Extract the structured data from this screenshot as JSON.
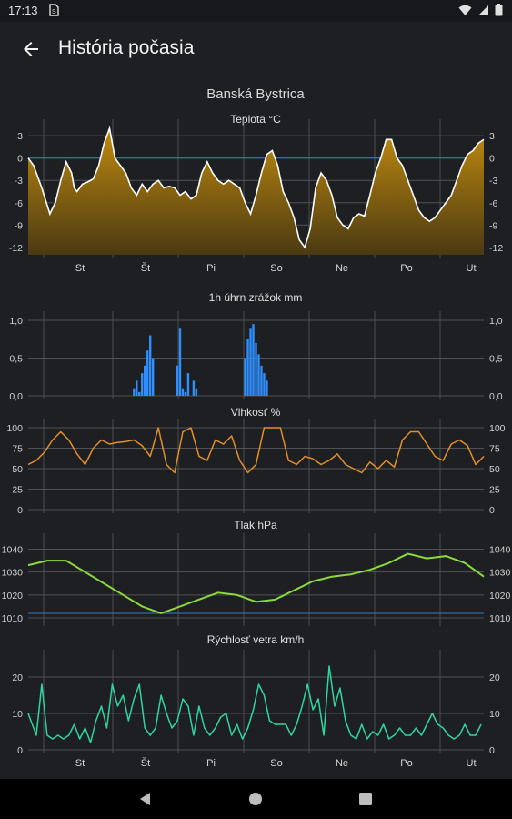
{
  "status_bar": {
    "time": "17:13",
    "sim_icon": "sim-card-icon",
    "icons": [
      "wifi-icon",
      "signal-icon",
      "battery-icon"
    ]
  },
  "app_bar": {
    "title": "História počasia",
    "back_icon": "arrow-back-icon"
  },
  "location": "Banská Bystrica",
  "days": [
    "St",
    "Št",
    "Pi",
    "So",
    "Ne",
    "Po",
    "Ut"
  ],
  "colors": {
    "temperature": "#b8860b",
    "precipitation": "#2f8fff",
    "humidity": "#e38f2b",
    "pressure": "#8cd93a",
    "wind": "#2fd6a2"
  },
  "chart_data": [
    {
      "type": "area",
      "title": "Teplota °C",
      "ylim": [
        -13,
        4
      ],
      "yticks": [
        "3",
        "0",
        "-3",
        "-6",
        "-9",
        "-12"
      ],
      "ytick_values": [
        3,
        0,
        -3,
        -6,
        -9,
        -12
      ],
      "x": [
        0,
        2,
        5,
        8,
        10,
        12,
        14,
        16,
        17,
        18,
        20,
        22,
        24,
        26,
        28,
        30,
        32,
        34,
        36,
        38,
        40,
        42,
        44,
        46,
        48,
        50,
        52,
        54,
        56,
        58,
        60,
        62,
        64,
        66,
        68,
        70,
        72,
        74,
        76,
        78,
        80,
        82,
        84,
        86,
        88,
        90,
        92,
        94,
        96,
        98,
        100,
        102,
        104,
        106,
        108,
        110,
        112,
        114,
        116,
        118,
        120,
        122,
        124,
        126,
        128,
        130,
        132,
        134,
        136,
        138,
        140,
        142,
        144,
        146,
        148,
        150,
        152,
        154,
        156,
        158,
        160,
        162,
        164,
        166,
        168
      ],
      "values": [
        0,
        -1,
        -4,
        -7.5,
        -6,
        -3,
        -0.5,
        -2,
        -4,
        -4.5,
        -3.5,
        -3.2,
        -2.8,
        -1,
        2,
        4,
        0,
        -1,
        -2,
        -4,
        -5,
        -3.5,
        -4.5,
        -3.5,
        -3,
        -4,
        -3.8,
        -4,
        -5,
        -4.5,
        -5.5,
        -5,
        -2,
        -0.5,
        -2,
        -3,
        -3.5,
        -3,
        -3.5,
        -4,
        -6,
        -7.5,
        -5,
        -2,
        0.5,
        1,
        -1,
        -4.5,
        -6,
        -8,
        -11,
        -12,
        -9.5,
        -4,
        -2,
        -3,
        -5,
        -8,
        -9,
        -9.5,
        -8,
        -7.5,
        -7.8,
        -5,
        -2,
        0,
        2.5,
        2.5,
        0,
        -1,
        -3,
        -5,
        -7,
        -8,
        -8.5,
        -8,
        -7,
        -6,
        -5,
        -3,
        -1,
        0.5,
        1,
        2,
        2.5
      ],
      "zero_line": 0
    },
    {
      "type": "bar",
      "title": "1h úhrn zrážok mm",
      "ylim": [
        0,
        1.0
      ],
      "yticks": [
        "1,0",
        "0,5",
        "0,0"
      ],
      "ytick_values": [
        1.0,
        0.5,
        0.0
      ],
      "x": [
        39,
        40,
        41,
        42,
        43,
        44,
        45,
        46,
        55,
        56,
        57,
        58,
        59,
        61,
        62,
        80,
        81,
        82,
        83,
        84,
        85,
        86,
        87,
        88
      ],
      "values": [
        0.1,
        0.2,
        0.05,
        0.3,
        0.4,
        0.6,
        0.8,
        0.5,
        0.4,
        0.9,
        0.1,
        0.05,
        0.3,
        0.2,
        0.1,
        0.5,
        0.75,
        0.9,
        0.95,
        0.7,
        0.55,
        0.4,
        0.3,
        0.2
      ]
    },
    {
      "type": "line",
      "title": "Vlhkosť %",
      "ylim": [
        0,
        100
      ],
      "yticks": [
        "100",
        "75",
        "50",
        "25",
        "0"
      ],
      "ytick_values": [
        100,
        75,
        50,
        25,
        0
      ],
      "x": [
        0,
        3,
        6,
        9,
        12,
        15,
        18,
        21,
        24,
        27,
        30,
        33,
        36,
        39,
        42,
        45,
        48,
        51,
        54,
        57,
        60,
        63,
        66,
        69,
        72,
        75,
        78,
        81,
        84,
        87,
        90,
        93,
        96,
        99,
        102,
        105,
        108,
        111,
        114,
        117,
        120,
        123,
        126,
        129,
        132,
        135,
        138,
        141,
        144,
        147,
        150,
        153,
        156,
        159,
        162,
        165,
        168
      ],
      "values": [
        55,
        60,
        70,
        85,
        95,
        85,
        68,
        55,
        75,
        85,
        80,
        82,
        83,
        85,
        78,
        65,
        100,
        55,
        45,
        95,
        100,
        65,
        60,
        85,
        80,
        90,
        60,
        45,
        55,
        100,
        100,
        100,
        60,
        55,
        65,
        62,
        55,
        60,
        68,
        55,
        50,
        45,
        58,
        50,
        60,
        52,
        85,
        95,
        95,
        80,
        65,
        60,
        80,
        85,
        78,
        55,
        65
      ]
    },
    {
      "type": "line",
      "title": "Tlak hPa",
      "ylim": [
        1008,
        1043
      ],
      "yticks": [
        "1040",
        "1030",
        "1020",
        "1010"
      ],
      "ytick_values": [
        1040,
        1030,
        1020,
        1010
      ],
      "x": [
        0,
        7,
        14,
        21,
        28,
        35,
        42,
        49,
        56,
        63,
        70,
        77,
        84,
        91,
        98,
        105,
        112,
        119,
        126,
        133,
        140,
        147,
        154,
        161,
        168
      ],
      "values": [
        1033,
        1035,
        1035,
        1030,
        1025,
        1020,
        1015,
        1012,
        1015,
        1018,
        1021,
        1020,
        1017,
        1018,
        1022,
        1026,
        1028,
        1029,
        1031,
        1034,
        1038,
        1036,
        1037,
        1034,
        1028
      ]
    },
    {
      "type": "line",
      "title": "Rýchlosť vetra km/h",
      "ylim": [
        0,
        25
      ],
      "yticks": [
        "20",
        "10",
        "0"
      ],
      "ytick_values": [
        20,
        10,
        0
      ],
      "x": [
        0,
        3,
        5,
        7,
        9,
        11,
        13,
        15,
        17,
        19,
        21,
        23,
        25,
        27,
        29,
        31,
        33,
        35,
        37,
        39,
        41,
        43,
        45,
        47,
        49,
        51,
        53,
        55,
        57,
        59,
        61,
        63,
        65,
        67,
        69,
        71,
        73,
        75,
        77,
        79,
        81,
        83,
        85,
        87,
        89,
        91,
        93,
        95,
        97,
        99,
        101,
        103,
        105,
        107,
        109,
        111,
        113,
        115,
        117,
        119,
        121,
        123,
        125,
        127,
        129,
        131,
        133,
        135,
        137,
        139,
        141,
        143,
        145,
        147,
        149,
        151,
        153,
        155,
        157,
        159,
        161,
        163,
        165,
        167
      ],
      "values": [
        10,
        4,
        18,
        4,
        3,
        4,
        3,
        4,
        7,
        3,
        6,
        2,
        8,
        12,
        6,
        18,
        12,
        15,
        8,
        14,
        18,
        6,
        4,
        6,
        15,
        10,
        6,
        8,
        14,
        12,
        4,
        12,
        6,
        4,
        6,
        9,
        10,
        4,
        7,
        3,
        6,
        11,
        18,
        15,
        8,
        7,
        7,
        7,
        4,
        7,
        12,
        18,
        11,
        14,
        4,
        23,
        12,
        17,
        8,
        4,
        3,
        7,
        3,
        5,
        4,
        7,
        3,
        4,
        6,
        4,
        4,
        6,
        4,
        7,
        10,
        7,
        6,
        4,
        3,
        4,
        7,
        4,
        4,
        7
      ]
    }
  ]
}
